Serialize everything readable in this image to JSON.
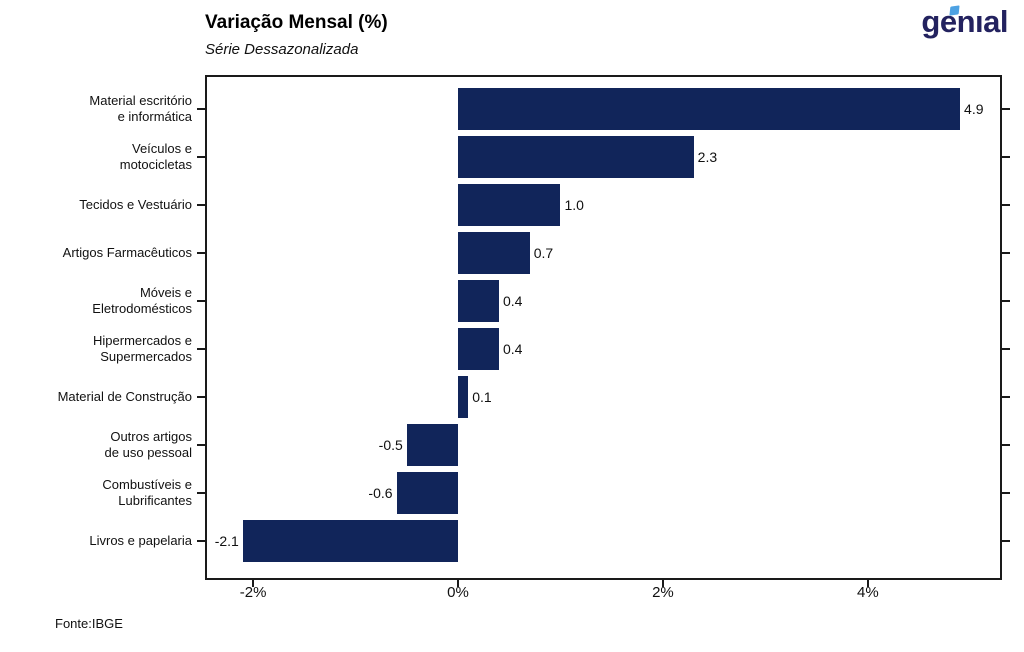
{
  "header": {
    "title": "Variação Mensal (%)",
    "subtitle": "Série Dessazonalizada"
  },
  "logo": {
    "text": "genıal",
    "color": "#23225f",
    "accent_color": "#4da2e3"
  },
  "footer": {
    "source": "Fonte:IBGE"
  },
  "chart_data": {
    "type": "bar",
    "orientation": "horizontal",
    "title": "Variação Mensal (%)",
    "subtitle": "Série Dessazonalizada",
    "bar_color": "#11255a",
    "axis_color": "#1a1a1a",
    "grid": false,
    "legend": false,
    "xlim": [
      -2.45,
      5.29
    ],
    "categories": [
      "Material escritório e informática",
      "Veículos e motocicletas",
      "Tecidos e Vestuário",
      "Artigos Farmacêuticos",
      "Móveis e Eletrodomésticos",
      "Hipermercados e Supermercados",
      "Material de Construção",
      "Outros artigos de uso pessoal",
      "Combustíveis e Lubrificantes",
      "Livros e papelaria"
    ],
    "label_lines": [
      [
        "Material escritório",
        "e informática"
      ],
      [
        "Veículos e",
        "motocicletas"
      ],
      [
        "Tecidos e Vestuário"
      ],
      [
        "Artigos Farmacêuticos"
      ],
      [
        "Móveis e",
        "Eletrodomésticos"
      ],
      [
        "Hipermercados e",
        "Supermercados"
      ],
      [
        "Material de Construção"
      ],
      [
        "Outros artigos",
        "de uso pessoal"
      ],
      [
        "Combustíveis e",
        "Lubrificantes"
      ],
      [
        "Livros e papelaria"
      ]
    ],
    "values": [
      4.9,
      2.3,
      1.0,
      0.7,
      0.4,
      0.4,
      0.1,
      -0.5,
      -0.6,
      -2.1
    ],
    "value_labels": [
      "4.9",
      "2.3",
      "1.0",
      "0.7",
      "0.4",
      "0.4",
      "0.1",
      "-0.5",
      "-0.6",
      "-2.1"
    ],
    "x_ticks": [
      {
        "value": -2,
        "label": "-2%"
      },
      {
        "value": 0,
        "label": "0%"
      },
      {
        "value": 2,
        "label": "2%"
      },
      {
        "value": 4,
        "label": "4%"
      }
    ]
  }
}
